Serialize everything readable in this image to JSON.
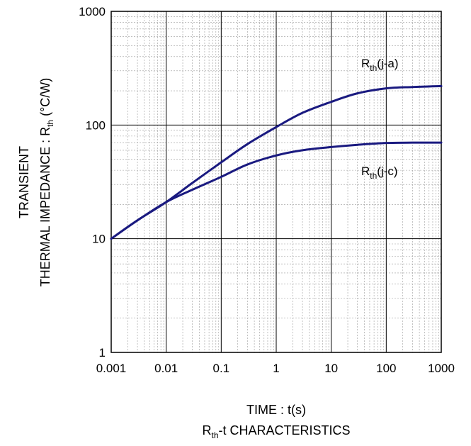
{
  "chart_data": {
    "type": "line",
    "title": "",
    "caption": {
      "prefix": "R",
      "sub": "th",
      "suffix": "-t CHARACTERISTICS"
    },
    "xlabel": "TIME : t(s)",
    "ylabel": {
      "line1": "TRANSIENT",
      "line2_prefix": "THERMAL IMPEDANCE : R",
      "line2_sub": "th",
      "line2_suffix": " (°C/W)"
    },
    "x_scale": "log",
    "y_scale": "log",
    "xlim": [
      0.001,
      1000
    ],
    "ylim": [
      1,
      1000
    ],
    "x_ticks": [
      "0.001",
      "0.01",
      "0.1",
      "1",
      "10",
      "100",
      "1000"
    ],
    "y_ticks": [
      "1",
      "10",
      "100",
      "1000"
    ],
    "grid": "major and minor (log)",
    "legend": "none (inline labels)",
    "line_color": "#1a1a80",
    "series": [
      {
        "name": "Rth(j-a)",
        "label_prefix": "R",
        "label_sub": "th",
        "label_suffix": "(j-a)",
        "x": [
          0.001,
          0.003,
          0.01,
          0.03,
          0.1,
          0.3,
          1,
          3,
          10,
          30,
          100,
          300,
          1000
        ],
        "y": [
          10,
          14.5,
          21,
          31,
          47,
          68,
          96,
          128,
          160,
          190,
          210,
          216,
          220
        ]
      },
      {
        "name": "Rth(j-c)",
        "label_prefix": "R",
        "label_sub": "th",
        "label_suffix": "(j-c)",
        "x": [
          0.001,
          0.003,
          0.01,
          0.03,
          0.1,
          0.3,
          1,
          3,
          10,
          30,
          100,
          300,
          1000
        ],
        "y": [
          10,
          14.5,
          21,
          27,
          35,
          45,
          54,
          60,
          64,
          67,
          69.5,
          70,
          70
        ]
      }
    ]
  }
}
